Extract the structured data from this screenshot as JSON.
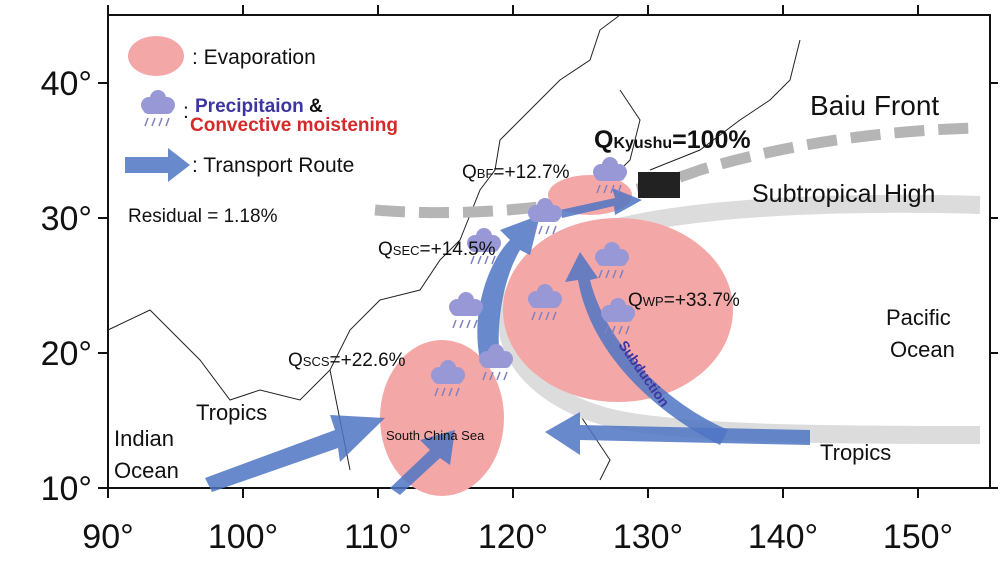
{
  "axes": {
    "x_ticks": [
      "90°",
      "100°",
      "110°",
      "120°",
      "130°",
      "140°",
      "150°"
    ],
    "y_ticks": [
      "10°",
      "20°",
      "30°",
      "40°"
    ]
  },
  "legend": {
    "evaporation": ": Evaporation",
    "colon": ":",
    "precipitation": "Precipitaion",
    "amp": "&",
    "convective": "Convective moistening",
    "transport": ": Transport Route",
    "residual": "Residual = 1.18%"
  },
  "labels": {
    "baiu_front": "Baiu Front",
    "subtropical_high": "Subtropical High",
    "pacific": "Pacific",
    "ocean": "Ocean",
    "tropics_left": "Tropics",
    "tropics_right": "Tropics",
    "indian": "Indian",
    "indian_ocean": "Ocean",
    "south_china_sea": "South China Sea",
    "subduction": "Subduction",
    "q_kyushu": {
      "q": "Q",
      "sub": "Kyushu",
      "value": "=100%"
    },
    "q_bf": {
      "q": "Q",
      "sub": "BF",
      "value": "=+12.7%"
    },
    "q_sec": {
      "q": "Q",
      "sub": "SEC",
      "value": "=+14.5%"
    },
    "q_wp": {
      "q": "Q",
      "sub": "WP",
      "value": "=+33.7%"
    },
    "q_scs": {
      "q": "Q",
      "sub": "SCS",
      "value": "=+22.6%"
    }
  }
}
